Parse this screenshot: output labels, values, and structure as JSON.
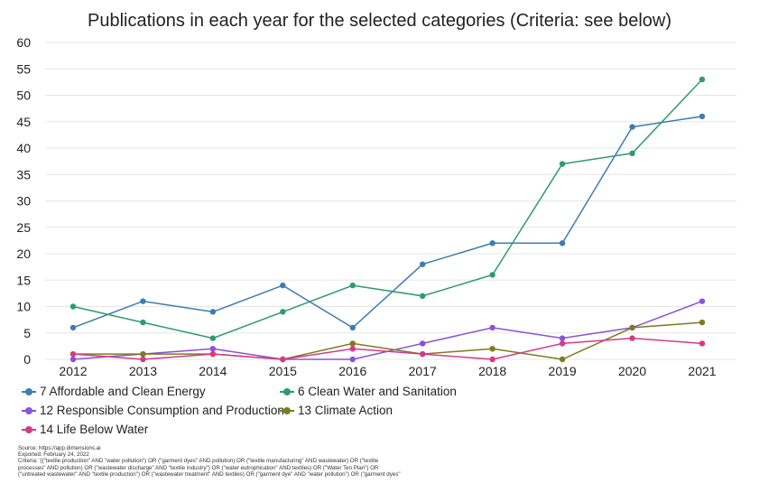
{
  "chart_data": {
    "type": "line",
    "title": "Publications in each year for the selected categories (Criteria: see below)",
    "xlabel": "",
    "ylabel": "",
    "x": [
      "2012",
      "2013",
      "2014",
      "2015",
      "2016",
      "2017",
      "2018",
      "2019",
      "2020",
      "2021"
    ],
    "ylim": [
      0,
      60
    ],
    "yticks": [
      "0",
      "5",
      "10",
      "15",
      "20",
      "25",
      "30",
      "35",
      "40",
      "45",
      "50",
      "55",
      "60"
    ],
    "grid": true,
    "legend_position": "bottom",
    "series": [
      {
        "name": "7 Affordable and Clean Energy",
        "color": "#3e7cb1",
        "values": [
          6,
          11,
          9,
          14,
          6,
          18,
          22,
          22,
          44,
          46
        ]
      },
      {
        "name": "6 Clean Water and Sanitation",
        "color": "#2e9a70",
        "values": [
          10,
          7,
          4,
          9,
          14,
          12,
          16,
          37,
          39,
          53
        ]
      },
      {
        "name": "12 Responsible Consumption and Production",
        "color": "#8a52d6",
        "values": [
          0,
          1,
          2,
          0,
          0,
          3,
          6,
          4,
          6,
          11
        ]
      },
      {
        "name": "13 Climate Action",
        "color": "#7d7a1f",
        "values": [
          1,
          1,
          1,
          0,
          3,
          1,
          2,
          0,
          6,
          7
        ]
      },
      {
        "name": "14 Life Below Water",
        "color": "#d63a86",
        "values": [
          1,
          0,
          1,
          0,
          2,
          1,
          0,
          3,
          4,
          3
        ]
      }
    ]
  },
  "notes": {
    "source": "Source: https://app.dimensions.ai",
    "exported": "Exported: February 24, 2022",
    "criteria": "Criteria: '((\"textile production\" AND \"water pollution\") OR (\"garment dyes\" AND pollution) OR (\"textile manufacturing\" AND wastewater) OR (\"textile processes\" AND pollution) OR (\"wastewater discharge\" AND \"textile industry\") OR (\"water eutrophication\" AND textiles) OR (\"Water Ten Plan\") OR (\"untreated wastewater\" AND \"textile production\") OR (\"wastewater treatment\" AND textiles) OR (\"garment dye\" AND \"water pollution\") OR (\"garment dyes\" AND \"water pollution\") OR (\"textile manufacturing\" AND water pollution) OR (\"textile pollutants AND wastewater\") OR (\"wastewater chemical pollutants\" AND \"textile production\") OR (\"wastewater chemical pollutants\""
  }
}
